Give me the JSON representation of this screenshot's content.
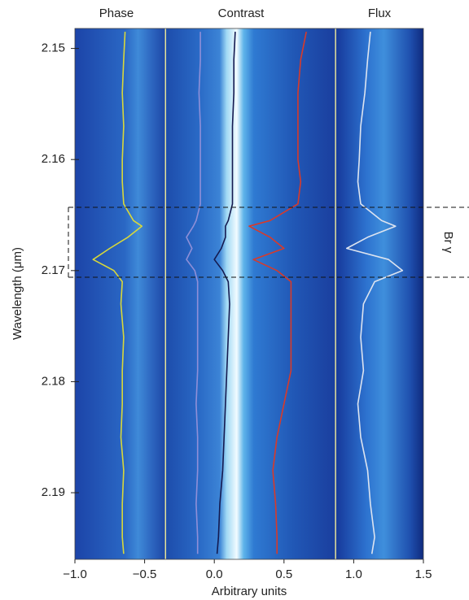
{
  "chart_data": {
    "type": "line",
    "panel_titles": [
      "Phase",
      "Contrast",
      "Flux"
    ],
    "xlabel": "Arbitrary units",
    "ylabel": "Wavelength (μm)",
    "annotation": "Br γ",
    "xlim": [
      -1.0,
      1.5
    ],
    "ylim": [
      2.1482,
      2.196
    ],
    "invert_y": true,
    "xticks": [
      {
        "value": -1.0,
        "label": "−1.0"
      },
      {
        "value": -0.5,
        "label": "−0.5"
      },
      {
        "value": 0,
        "label": "0.0"
      },
      0.5,
      {
        "value": 1.0,
        "label": "1.0"
      },
      1.5
    ],
    "yticks": [
      2.15,
      2.16,
      2.17,
      2.18,
      2.19
    ],
    "vlines": [
      -0.35,
      0.87
    ],
    "vline_color": "#e6e39a",
    "band": [
      2.1643,
      2.1706
    ],
    "y": [
      2.1485,
      2.151,
      2.154,
      2.157,
      2.16,
      2.162,
      2.164,
      2.1655,
      2.166,
      2.167,
      2.168,
      2.169,
      2.17,
      2.171,
      2.173,
      2.176,
      2.179,
      2.182,
      2.185,
      2.188,
      2.191,
      2.194,
      2.1955
    ],
    "series": [
      {
        "color": "#d8d83a",
        "values": [
          -0.64,
          -0.65,
          -0.66,
          -0.65,
          -0.66,
          -0.66,
          -0.65,
          -0.58,
          -0.52,
          -0.62,
          -0.75,
          -0.87,
          -0.72,
          -0.66,
          -0.67,
          -0.65,
          -0.66,
          -0.66,
          -0.67,
          -0.65,
          -0.66,
          -0.66,
          -0.65
        ]
      },
      {
        "color": "#8f8fd8",
        "values": [
          -0.1,
          -0.1,
          -0.11,
          -0.1,
          -0.1,
          -0.1,
          -0.1,
          -0.13,
          -0.15,
          -0.2,
          -0.16,
          -0.2,
          -0.14,
          -0.12,
          -0.12,
          -0.12,
          -0.12,
          -0.13,
          -0.12,
          -0.12,
          -0.13,
          -0.12,
          -0.12
        ]
      },
      {
        "color": "#141a50",
        "values": [
          0.15,
          0.14,
          0.14,
          0.13,
          0.13,
          0.13,
          0.13,
          0.1,
          0.08,
          0.08,
          0.05,
          0.0,
          0.06,
          0.1,
          0.11,
          0.1,
          0.09,
          0.08,
          0.07,
          0.06,
          0.04,
          0.03,
          0.02
        ]
      },
      {
        "color": "#d83a2a",
        "values": [
          0.66,
          0.62,
          0.6,
          0.6,
          0.6,
          0.62,
          0.6,
          0.4,
          0.25,
          0.4,
          0.5,
          0.28,
          0.45,
          0.55,
          0.55,
          0.55,
          0.55,
          0.5,
          0.45,
          0.42,
          0.44,
          0.45,
          0.45
        ]
      },
      {
        "color": "#dde4f0",
        "values": [
          1.12,
          1.1,
          1.08,
          1.05,
          1.04,
          1.03,
          1.05,
          1.2,
          1.3,
          1.1,
          0.95,
          1.25,
          1.35,
          1.15,
          1.07,
          1.05,
          1.07,
          1.03,
          1.05,
          1.1,
          1.12,
          1.15,
          1.13
        ]
      }
    ]
  }
}
